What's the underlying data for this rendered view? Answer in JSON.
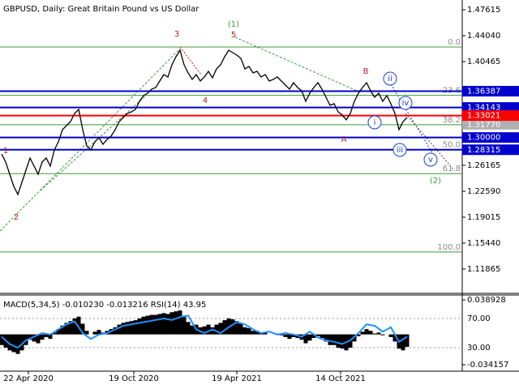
{
  "chart_data": [
    {
      "type": "line",
      "title": "GBPUSD, Daily:  Great Britain Pound vs US Dollar",
      "color": "#000000",
      "values": [
        1.2773,
        1.2662,
        1.2494,
        1.2326,
        1.2215,
        1.2382,
        1.255,
        1.2717,
        1.2606,
        1.2494,
        1.2662,
        1.2717,
        1.2606,
        1.2829,
        1.2941,
        1.3108,
        1.3164,
        1.322,
        1.3332,
        1.3388,
        1.3108,
        1.2885,
        1.2829,
        1.2941,
        1.2997,
        1.2907,
        1.2974,
        1.3019,
        1.3108,
        1.322,
        1.3276,
        1.3332,
        1.3354,
        1.3388,
        1.3499,
        1.3578,
        1.3611,
        1.3667,
        1.3689,
        1.3779,
        1.3868,
        1.3835,
        1.4002,
        1.4114,
        1.4203,
        1.4002,
        1.3891,
        1.3801,
        1.3868,
        1.3779,
        1.3835,
        1.3913,
        1.3823,
        1.3946,
        1.4002,
        1.4114,
        1.4203,
        1.417,
        1.4136,
        1.4092,
        1.3946,
        1.398,
        1.3891,
        1.3913,
        1.3835,
        1.3868,
        1.3779,
        1.3801,
        1.3835,
        1.3779,
        1.3723,
        1.3667,
        1.3756,
        1.3689,
        1.3645,
        1.3499,
        1.3611,
        1.3689,
        1.3756,
        1.3667,
        1.3555,
        1.3444,
        1.3466,
        1.3354,
        1.331,
        1.3243,
        1.3332,
        1.3499,
        1.3611,
        1.3689,
        1.3756,
        1.3645,
        1.3555,
        1.3611,
        1.3499,
        1.3578,
        1.3466,
        1.3332,
        1.3108,
        1.322,
        1.3276
      ],
      "xlim": [
        -0.4,
        113.6
      ],
      "xticks": [
        {
          "value": 6.6,
          "label": "22 Apr 2020"
        },
        {
          "value": 32.6,
          "label": "19 Oct 2020"
        },
        {
          "value": 58,
          "label": "19 Apr 2021"
        },
        {
          "value": 83.6,
          "label": "14 Oct 2021"
        }
      ],
      "ylim": [
        1.0851,
        1.4896
      ],
      "yticks": [
        1.47615,
        {
          "value": 1.4404,
          "label": "1.44040"
        },
        1.40465,
        1.26165,
        {
          "value": 1.2259,
          "label": "1.22590"
        },
        1.19015,
        {
          "value": 1.1544,
          "label": "1.15440"
        },
        1.11865
      ],
      "levels": [
        {
          "value": 1.36387,
          "color": "#0000cd"
        },
        {
          "value": 1.34143,
          "color": "#0000cd"
        },
        {
          "value": 1.33021,
          "color": "#ff0000"
        },
        {
          "value": {
            "value": 1.3,
            "label": "1.30000"
          },
          "color": "#0000cd"
        },
        {
          "value": 1.28315,
          "color": "#0000cd"
        }
      ],
      "fibonacci": {
        "color": "#3c9a3c",
        "levels": [
          {
            "level": "0.0",
            "price": 1.4248
          },
          {
            "level": "23.6",
            "price": 1.3581
          },
          {
            "level": "38.2",
            "price": {
              "value": 1.3177,
              "label": "1.31770"
            }
          },
          {
            "level": "50.0",
            "price": 1.2835
          },
          {
            "level": "61.8",
            "price": 1.2502
          },
          {
            "level": "100.0",
            "price": 1.1422
          }
        ]
      },
      "annotations": [
        {
          "text": "1",
          "color": "#b22222"
        },
        {
          "text": "2",
          "color": "#b22222"
        },
        {
          "text": "3",
          "color": "#b22222"
        },
        {
          "text": "4",
          "color": "#b22222"
        },
        {
          "text": "5",
          "color": "#b22222"
        },
        {
          "text": "(1)",
          "color": "#3c9a3c"
        },
        {
          "text": "A",
          "color": "#b22222"
        },
        {
          "text": "B",
          "color": "#b22222"
        },
        {
          "text": "i",
          "color": "#1a3fd0",
          "circled": true
        },
        {
          "text": "ii",
          "color": "#1a3fd0",
          "circled": true
        },
        {
          "text": "iii",
          "color": "#1a3fd0",
          "circled": true
        },
        {
          "text": "iv",
          "color": "#1a3fd0",
          "circled": true
        },
        {
          "text": "v",
          "color": "#1a3fd0",
          "circled": true
        },
        {
          "text": "(2)",
          "color": "#3c9a3c"
        }
      ]
    },
    {
      "type": "bar",
      "label": "MACD(5,34,5) -0.010230 -0.013216 RSI(14) 43.95",
      "color": "#000000",
      "values": [
        -0.012,
        -0.015,
        -0.018,
        -0.02,
        -0.022,
        -0.018,
        -0.012,
        -0.006,
        -0.008,
        -0.01,
        -0.006,
        -0.003,
        -0.005,
        0.002,
        0.006,
        0.01,
        0.013,
        0.015,
        0.018,
        0.02,
        0.012,
        0.004,
        0.0,
        0.003,
        0.005,
        0.002,
        0.004,
        0.006,
        0.008,
        0.011,
        0.013,
        0.014,
        0.015,
        0.016,
        0.018,
        0.02,
        0.021,
        0.022,
        0.022,
        0.023,
        0.024,
        0.023,
        0.025,
        0.026,
        0.027,
        0.02,
        0.014,
        0.01,
        0.011,
        0.008,
        0.009,
        0.011,
        0.008,
        0.011,
        0.013,
        0.016,
        0.018,
        0.017,
        0.015,
        0.012,
        0.008,
        0.007,
        0.004,
        0.004,
        0.002,
        0.002,
        0.0,
        0.0,
        0.001,
        -0.001,
        -0.003,
        -0.005,
        -0.003,
        -0.004,
        -0.006,
        -0.01,
        -0.007,
        -0.004,
        -0.002,
        -0.004,
        -0.008,
        -0.012,
        -0.012,
        -0.015,
        -0.016,
        -0.018,
        -0.015,
        -0.008,
        -0.002,
        0.003,
        0.006,
        0.004,
        0.001,
        0.002,
        -0.001,
        0.0,
        -0.003,
        -0.008,
        -0.016,
        -0.018,
        -0.014
      ],
      "ylim": [
        -0.04147,
        0.0435
      ],
      "yticks": [
        0.038928,
        -0.034157
      ],
      "rsi": {
        "color": "#1e90ff",
        "values": [
          45,
          35,
          30,
          40,
          45,
          50,
          48,
          55,
          62,
          66,
          50,
          42,
          48,
          50,
          55,
          60,
          62,
          64,
          66,
          68,
          70,
          68,
          72,
          74,
          55,
          50,
          55,
          50,
          58,
          65,
          62,
          55,
          50,
          52,
          48,
          50,
          48,
          45,
          52,
          44,
          40,
          38,
          35,
          40,
          50,
          62,
          60,
          52,
          58,
          38,
          45
        ],
        "ylim": [
          -2.2,
          101.1
        ],
        "yticks": [
          {
            "value": 70,
            "label": "70.00"
          },
          {
            "value": 30,
            "label": "30.00"
          }
        ]
      }
    }
  ]
}
